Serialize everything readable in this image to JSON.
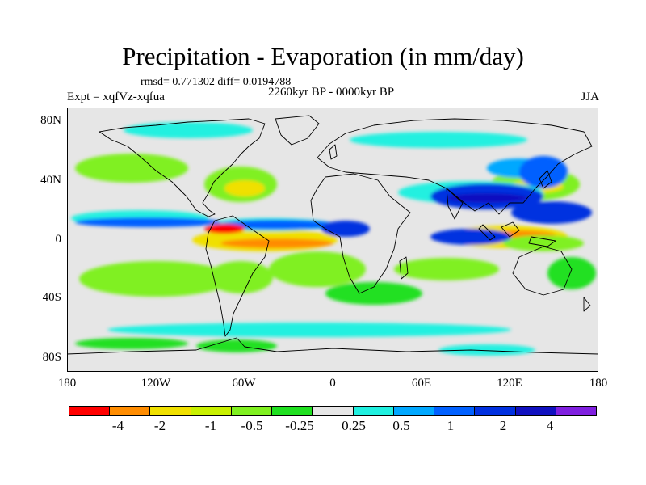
{
  "title": "Precipitation - Evaporation (in mm/day)",
  "stats": "rmsd= 0.771302 diff= 0.0194788",
  "experiment": "Expt = xqfVz-xqfua",
  "period": "2260kyr BP - 0000kyr BP",
  "season": "JJA",
  "x_ticks": [
    "180",
    "120W",
    "60W",
    "0",
    "60E",
    "120E",
    "180"
  ],
  "y_ticks": [
    "80N",
    "40N",
    "0",
    "40S",
    "80S"
  ],
  "colorbar": {
    "colors": [
      "#ff0000",
      "#ff8c00",
      "#f0e000",
      "#c8f000",
      "#80f020",
      "#20e020",
      "#e6e6e6",
      "#20f0e0",
      "#00a8ff",
      "#0060ff",
      "#0030e0",
      "#1010c0",
      "#8020e0"
    ],
    "labels": [
      "-4",
      "-2",
      "-1",
      "-0.5",
      "-0.25",
      "0.25",
      "0.5",
      "1",
      "2",
      "4"
    ]
  },
  "colors": {
    "background": "#e6e6e6",
    "coast": "#000000"
  }
}
